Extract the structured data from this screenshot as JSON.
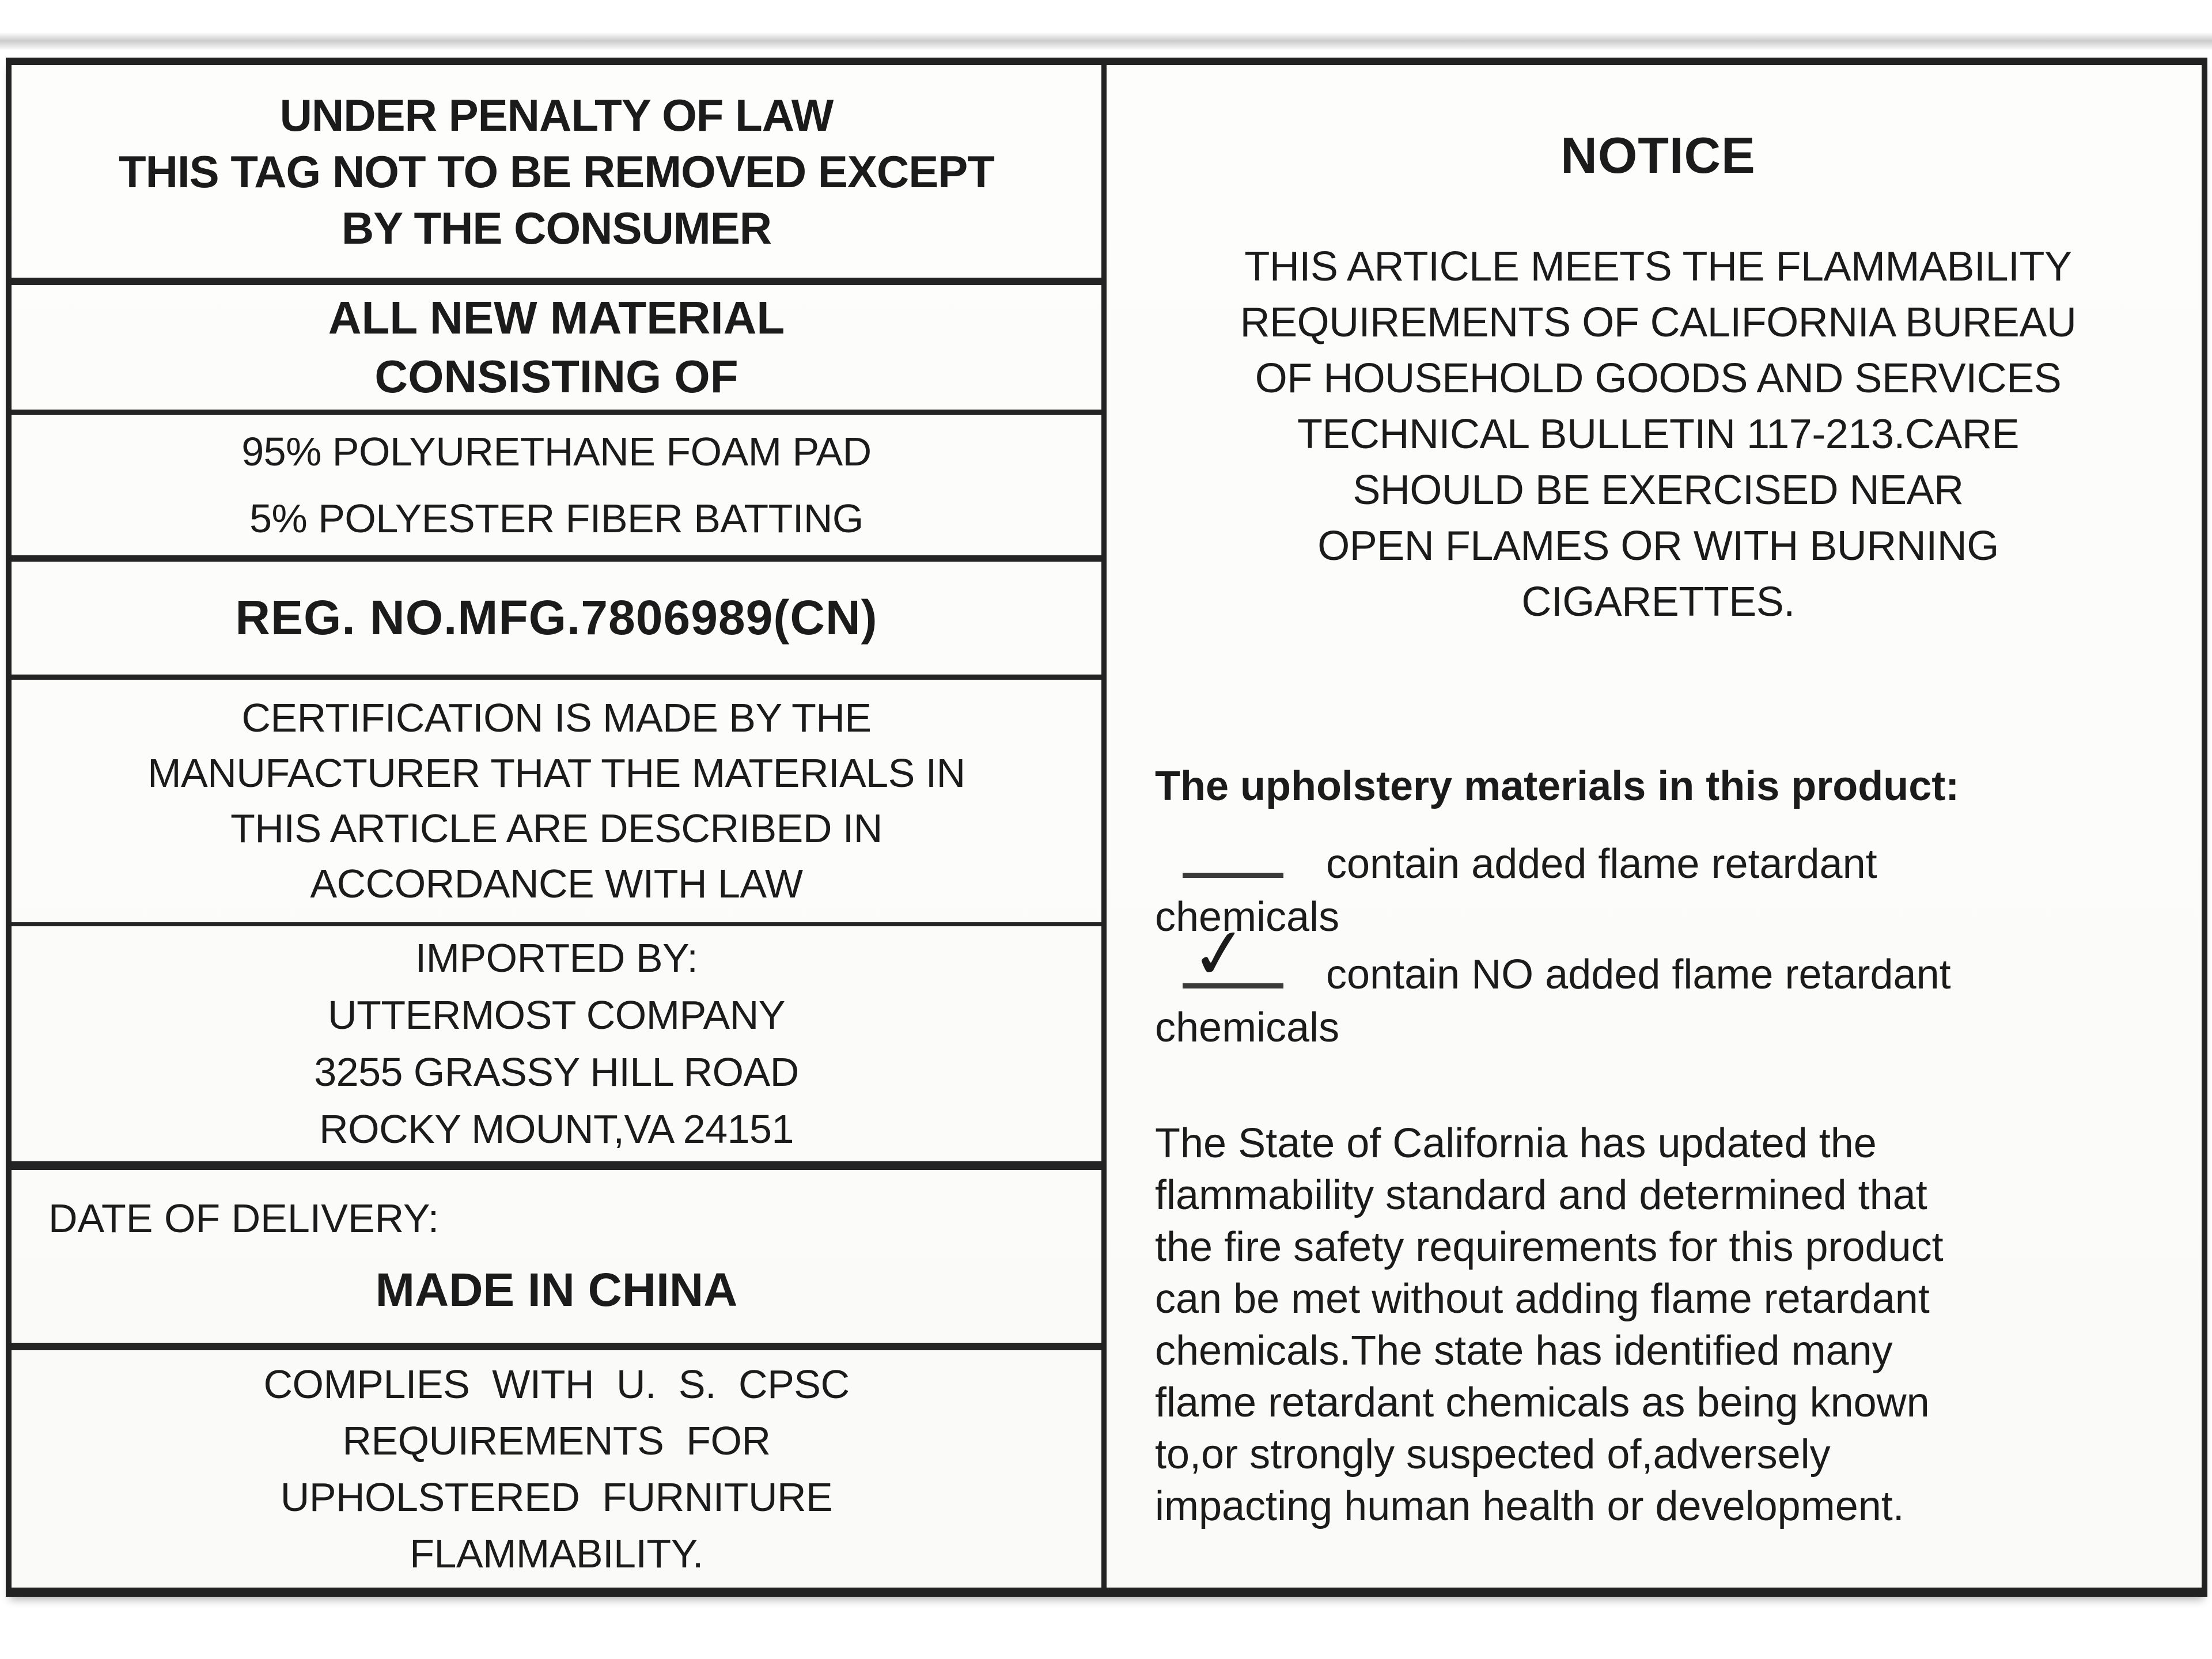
{
  "colors": {
    "ink": "#1b1b1b",
    "paper": "#fcfcfa",
    "border": "#222222"
  },
  "left_panel": {
    "penalty": "UNDER PENALTY OF LAW\nTHIS TAG NOT TO BE REMOVED EXCEPT\nBY THE CONSUMER",
    "material_heading": "ALL NEW MATERIAL\nCONSISTING OF",
    "contents": "95% POLYURETHANE FOAM PAD\n5% POLYESTER FIBER BATTING",
    "reg_no": "REG. NO.MFG.7806989(CN)",
    "certification": "CERTIFICATION IS MADE BY THE\nMANUFACTURER THAT THE MATERIALS IN\nTHIS ARTICLE ARE DESCRIBED IN\nACCORDANCE WITH LAW",
    "imported_by": "IMPORTED BY:\nUTTERMOST COMPANY\n3255 GRASSY HILL ROAD\nROCKY MOUNT,VA 24151",
    "date_of_delivery": "DATE OF DELIVERY:",
    "made_in": "MADE IN CHINA",
    "compliance": "COMPLIES WITH U. S. CPSC\nREQUIREMENTS FOR\nUPHOLSTERED FURNITURE\nFLAMMABILITY."
  },
  "right_panel": {
    "notice": "NOTICE",
    "flammability_notice": "THIS ARTICLE MEETS THE FLAMMABILITY\nREQUIREMENTS OF CALIFORNIA BUREAU\nOF HOUSEHOLD GOODS AND SERVICES\nTECHNICAL BULLETIN 117-213.CARE\nSHOULD BE EXERCISED NEAR\nOPEN FLAMES OR WITH BURNING\nCIGARETTES.",
    "upholstery_heading": "The upholstery materials in this product:",
    "options": [
      {
        "checked": "false",
        "line1": "contain added flame retardant",
        "line2": "chemicals"
      },
      {
        "checked": "true",
        "mark": "✓",
        "line1": "contain NO added flame retardant",
        "line2": "chemicals"
      }
    ],
    "state_update": "The State of California has updated the\nflammability standard and determined that\nthe fire safety requirements for this product\ncan be met without adding flame retardant\nchemicals.The state has identified many\nflame retardant chemicals as being known\nto,or strongly suspected of,adversely\nimpacting human health or development."
  }
}
